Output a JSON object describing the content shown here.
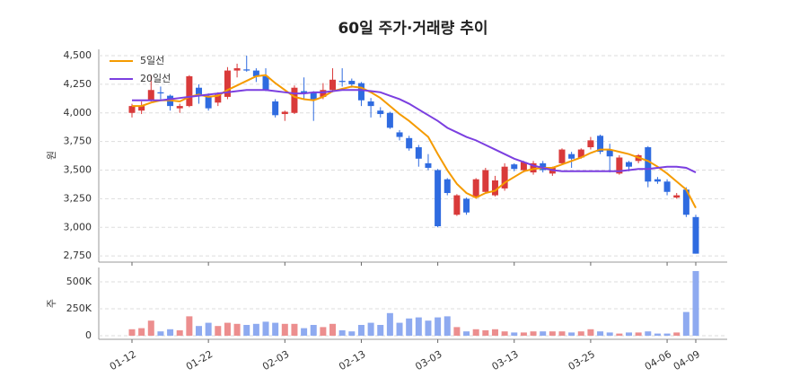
{
  "chart_data": {
    "type": "candlestick",
    "title": "60일 주가·거래량 추이",
    "ylabel": "원",
    "categories": [
      "01-12",
      null,
      null,
      null,
      null,
      null,
      null,
      null,
      "01-22",
      null,
      null,
      null,
      null,
      null,
      null,
      null,
      "02-03",
      null,
      null,
      null,
      null,
      null,
      null,
      null,
      "02-13",
      null,
      null,
      null,
      null,
      null,
      null,
      null,
      "03-03",
      null,
      null,
      null,
      null,
      null,
      null,
      null,
      "03-13",
      null,
      null,
      null,
      null,
      null,
      null,
      null,
      "03-25",
      null,
      null,
      null,
      null,
      null,
      null,
      null,
      "04-06",
      null,
      null,
      "04-09"
    ],
    "open": [
      4000,
      4020,
      4110,
      4180,
      4150,
      4040,
      4060,
      4220,
      4150,
      4090,
      4140,
      4370,
      4380,
      4370,
      4320,
      4100,
      3990,
      4000,
      4190,
      4180,
      4140,
      4200,
      4280,
      4280,
      4260,
      4100,
      4020,
      4000,
      3830,
      3780,
      3700,
      3560,
      3500,
      3420,
      3110,
      3250,
      3260,
      3310,
      3280,
      3340,
      3550,
      3500,
      3480,
      3560,
      3470,
      3560,
      3640,
      3610,
      3700,
      3800,
      3680,
      3470,
      3570,
      3580,
      3700,
      3420,
      3400,
      3260,
      3330,
      3090
    ],
    "high": [
      4080,
      4100,
      4330,
      4230,
      4160,
      4080,
      4330,
      4250,
      4170,
      4180,
      4400,
      4430,
      4500,
      4390,
      4390,
      4120,
      4020,
      4240,
      4310,
      4190,
      4260,
      4390,
      4390,
      4300,
      4270,
      4130,
      4050,
      4010,
      3850,
      3800,
      3720,
      3640,
      3510,
      3430,
      3290,
      3260,
      3430,
      3520,
      3450,
      3560,
      3560,
      3580,
      3580,
      3580,
      3530,
      3690,
      3660,
      3690,
      3790,
      3810,
      3730,
      3630,
      3580,
      3640,
      3710,
      3440,
      3420,
      3300,
      3350,
      3110
    ],
    "low": [
      3960,
      3990,
      4100,
      4120,
      4020,
      4000,
      4050,
      4080,
      4020,
      4060,
      4120,
      4310,
      4360,
      4270,
      4190,
      3960,
      3930,
      3990,
      4120,
      3930,
      4120,
      4180,
      4230,
      4220,
      4060,
      3960,
      3960,
      3860,
      3760,
      3670,
      3530,
      3500,
      3000,
      3280,
      3100,
      3110,
      3250,
      3300,
      3270,
      3320,
      3490,
      3480,
      3460,
      3480,
      3450,
      3550,
      3520,
      3600,
      3680,
      3640,
      3480,
      3460,
      3490,
      3560,
      3350,
      3380,
      3280,
      3250,
      3090,
      2770
    ],
    "close": [
      4060,
      4060,
      4200,
      4170,
      4060,
      4060,
      4320,
      4160,
      4040,
      4160,
      4370,
      4390,
      4370,
      4320,
      4200,
      3980,
      4010,
      4220,
      4170,
      4120,
      4200,
      4290,
      4270,
      4250,
      4110,
      4060,
      3990,
      3870,
      3790,
      3690,
      3600,
      3520,
      3010,
      3300,
      3280,
      3130,
      3420,
      3500,
      3410,
      3530,
      3510,
      3570,
      3560,
      3500,
      3520,
      3680,
      3600,
      3680,
      3760,
      3660,
      3620,
      3610,
      3530,
      3630,
      3400,
      3400,
      3310,
      3280,
      3110,
      2770
    ],
    "up_color": "#d93a3a",
    "down_color": "#2f6be0",
    "lines": [
      {
        "name": "5일선",
        "color": "#f59b00",
        "values": [
          4060,
          4060,
          4090,
          4110,
          4110,
          4100,
          4140,
          4160,
          4140,
          4150,
          4200,
          4240,
          4280,
          4320,
          4330,
          4260,
          4200,
          4140,
          4120,
          4110,
          4140,
          4190,
          4210,
          4230,
          4220,
          4180,
          4130,
          4060,
          3990,
          3930,
          3860,
          3790,
          3640,
          3500,
          3380,
          3300,
          3260,
          3300,
          3320,
          3390,
          3440,
          3490,
          3510,
          3520,
          3520,
          3550,
          3580,
          3610,
          3650,
          3680,
          3680,
          3660,
          3640,
          3610,
          3580,
          3530,
          3470,
          3400,
          3330,
          3170
        ]
      },
      {
        "name": "20일선",
        "color": "#7b3fe0",
        "values": [
          4110,
          4110,
          4110,
          4110,
          4120,
          4130,
          4140,
          4150,
          4160,
          4170,
          4180,
          4190,
          4200,
          4200,
          4200,
          4190,
          4180,
          4170,
          4170,
          4180,
          4180,
          4190,
          4200,
          4200,
          4200,
          4190,
          4180,
          4150,
          4120,
          4080,
          4030,
          3980,
          3930,
          3870,
          3830,
          3790,
          3760,
          3720,
          3680,
          3640,
          3600,
          3570,
          3540,
          3520,
          3500,
          3490,
          3490,
          3490,
          3490,
          3490,
          3490,
          3490,
          3500,
          3510,
          3510,
          3520,
          3530,
          3530,
          3520,
          3480
        ]
      }
    ],
    "ylim": [
      2712,
      4555
    ],
    "yticks": [
      {
        "value": 2750,
        "label": "2,750"
      },
      {
        "value": 3000,
        "label": "3,000"
      },
      {
        "value": 3250,
        "label": "3,250"
      },
      {
        "value": 3500,
        "label": "3,500"
      },
      {
        "value": 3750,
        "label": "3,750"
      },
      {
        "value": 4000,
        "label": "4,000"
      },
      {
        "value": 4250,
        "label": "4,250"
      },
      {
        "value": 4500,
        "label": "4,500"
      }
    ],
    "grid": true,
    "legend": "upper left",
    "volume": {
      "ylabel": "주",
      "up_color": "#ec8e8e",
      "down_color": "#8eaaf0",
      "values": [
        60000,
        70000,
        140000,
        40000,
        60000,
        50000,
        180000,
        90000,
        120000,
        90000,
        120000,
        110000,
        100000,
        110000,
        130000,
        120000,
        110000,
        110000,
        70000,
        100000,
        80000,
        110000,
        50000,
        40000,
        100000,
        120000,
        100000,
        210000,
        120000,
        160000,
        170000,
        140000,
        170000,
        180000,
        80000,
        40000,
        60000,
        50000,
        60000,
        40000,
        30000,
        30000,
        40000,
        40000,
        40000,
        40000,
        30000,
        40000,
        60000,
        40000,
        30000,
        20000,
        30000,
        30000,
        40000,
        20000,
        20000,
        30000,
        220000,
        600000
      ],
      "ylim": [
        0,
        633000
      ],
      "yticks": [
        0,
        {
          "value": 250000,
          "label": "250K"
        },
        {
          "value": 500000,
          "label": "500K"
        }
      ]
    }
  }
}
